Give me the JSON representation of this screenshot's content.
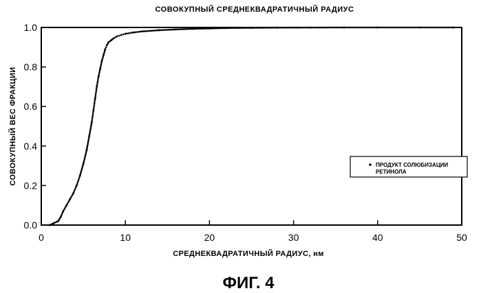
{
  "chart_data": {
    "type": "scatter",
    "title": "СОВОКУПНЫЙ СРЕДНЕКВАДРАТИЧНЫЙ РАДИУС",
    "xlabel": "СРЕДНЕКВАДРАТИЧНЫЙ РАДИУС, нм",
    "ylabel": "СОВОКУПНЫЙ ВЕС ФРАКЦИИ",
    "xlim": [
      0,
      50
    ],
    "ylim": [
      0,
      1.0
    ],
    "x_ticks": [
      0,
      10,
      20,
      30,
      40,
      50
    ],
    "y_ticks": [
      0.0,
      0.2,
      0.4,
      0.6,
      0.8,
      1.0
    ],
    "x_tick_labels": [
      "0",
      "10",
      "20",
      "30",
      "40",
      "50"
    ],
    "y_tick_labels": [
      "0.0",
      "0.2",
      "0.4",
      "0.6",
      "0.8",
      "1.0"
    ],
    "grid": false,
    "legend_position": "right",
    "series": [
      {
        "name": "ПРОДУКТ СОЛЮБИЗАЦИИ РЕТИНОЛА",
        "x": [
          1.0,
          1.5,
          2.0,
          2.3,
          2.6,
          3.0,
          3.4,
          3.8,
          4.2,
          4.6,
          5.0,
          5.4,
          5.7,
          6.0,
          6.2,
          6.4,
          6.6,
          6.8,
          7.0,
          7.2,
          7.4,
          7.6,
          7.8,
          8.0,
          8.3,
          8.6,
          9.0,
          9.5,
          10.0,
          11.0,
          12.0,
          14.0,
          16.0,
          18.0,
          20.0,
          22.0,
          25.0,
          28.0,
          32.0,
          36.0,
          40.0,
          45.0,
          49.0
        ],
        "y": [
          0.0,
          0.01,
          0.02,
          0.04,
          0.07,
          0.1,
          0.13,
          0.16,
          0.2,
          0.25,
          0.31,
          0.38,
          0.45,
          0.52,
          0.58,
          0.64,
          0.7,
          0.75,
          0.79,
          0.83,
          0.86,
          0.89,
          0.91,
          0.925,
          0.935,
          0.945,
          0.955,
          0.962,
          0.968,
          0.975,
          0.98,
          0.986,
          0.99,
          0.993,
          0.995,
          0.997,
          0.998,
          0.999,
          0.9995,
          1.0,
          1.0,
          1.0,
          1.0
        ]
      }
    ]
  },
  "figure": {
    "caption": "ФИГ. 4"
  },
  "legend": {
    "line1": "ПРОДУКТ СОЛЮБИЗАЦИИ",
    "line2": "РЕТИНОЛА"
  }
}
